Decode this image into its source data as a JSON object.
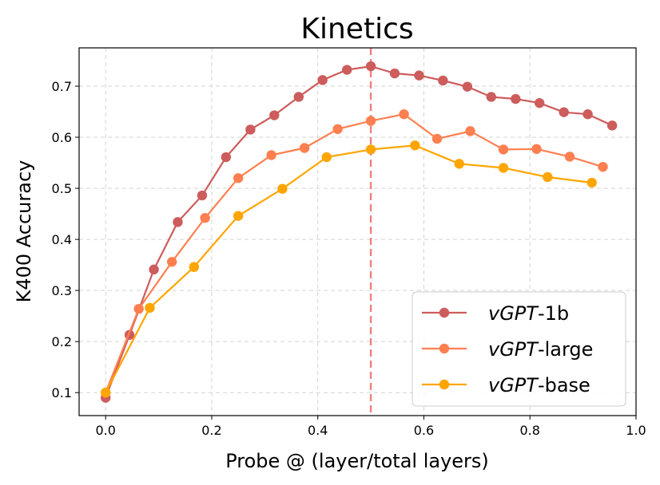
{
  "chart_data": {
    "type": "line",
    "title": "Kinetics",
    "xlabel": "Probe @ (layer/total layers)",
    "ylabel": "K400 Accuracy",
    "xlim": [
      -0.05,
      1.0
    ],
    "ylim": [
      0.055,
      0.775
    ],
    "xticks": [
      0.0,
      0.2,
      0.4,
      0.6,
      0.8,
      1.0
    ],
    "xtick_labels": [
      "0.0",
      "0.2",
      "0.4",
      "0.6",
      "0.8",
      "1.0"
    ],
    "yticks": [
      0.1,
      0.2,
      0.3,
      0.4,
      0.5,
      0.6,
      0.7
    ],
    "ytick_labels": [
      "0.1",
      "0.2",
      "0.3",
      "0.4",
      "0.5",
      "0.6",
      "0.7"
    ],
    "grid": true,
    "legend_position": "lower-right",
    "reference_line": {
      "x": 0.5,
      "color": "#f08080",
      "style": "dashed"
    },
    "series": [
      {
        "name": "vGPT-1b",
        "name_italic": "vGPT",
        "name_suffix": "-1b",
        "color": "#cd5c5c",
        "x": [
          0.0,
          0.045,
          0.091,
          0.136,
          0.182,
          0.227,
          0.273,
          0.318,
          0.364,
          0.409,
          0.455,
          0.5,
          0.545,
          0.591,
          0.636,
          0.682,
          0.727,
          0.773,
          0.818,
          0.864,
          0.909,
          0.955
        ],
        "y": [
          0.09,
          0.213,
          0.341,
          0.434,
          0.486,
          0.561,
          0.615,
          0.643,
          0.679,
          0.712,
          0.732,
          0.739,
          0.725,
          0.721,
          0.711,
          0.699,
          0.679,
          0.675,
          0.667,
          0.649,
          0.645,
          0.623
        ]
      },
      {
        "name": "vGPT-large",
        "name_italic": "vGPT",
        "name_suffix": "-large",
        "color": "#ff7f50",
        "x": [
          0.0,
          0.0625,
          0.125,
          0.1875,
          0.25,
          0.3125,
          0.375,
          0.4375,
          0.5,
          0.5625,
          0.625,
          0.6875,
          0.75,
          0.8125,
          0.875,
          0.9375
        ],
        "y": [
          0.1,
          0.264,
          0.356,
          0.442,
          0.52,
          0.565,
          0.579,
          0.616,
          0.632,
          0.645,
          0.597,
          0.612,
          0.576,
          0.577,
          0.562,
          0.542
        ]
      },
      {
        "name": "vGPT-base",
        "name_italic": "vGPT",
        "name_suffix": "-base",
        "color": "#ffa500",
        "x": [
          0.0,
          0.0833,
          0.1667,
          0.25,
          0.3333,
          0.4167,
          0.5,
          0.5833,
          0.6667,
          0.75,
          0.8333,
          0.9167
        ],
        "y": [
          0.1,
          0.266,
          0.346,
          0.446,
          0.499,
          0.561,
          0.576,
          0.584,
          0.548,
          0.54,
          0.522,
          0.511
        ]
      }
    ]
  }
}
